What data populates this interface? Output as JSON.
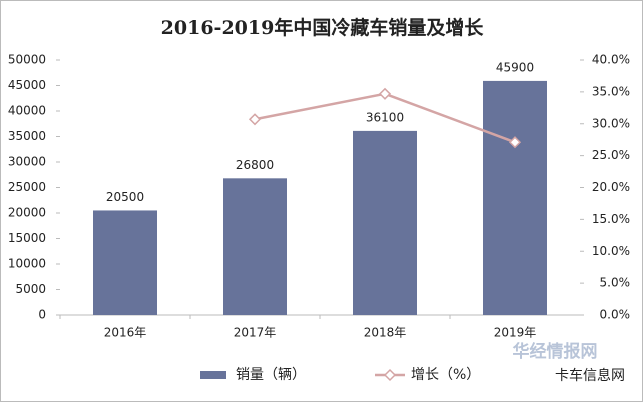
{
  "chart_data": {
    "type": "bar",
    "title": "2016-2019年中国冷藏车销量及增长",
    "categories": [
      "2016年",
      "2017年",
      "2018年",
      "2019年"
    ],
    "series": [
      {
        "name": "销量（辆）",
        "type": "bar",
        "color": "#67739a",
        "values": [
          20500,
          26800,
          36100,
          45900
        ]
      },
      {
        "name": "增长（%）",
        "type": "line",
        "axis": "y2",
        "color": "#d4a5a5",
        "values": [
          null,
          30.7,
          34.7,
          27.1
        ]
      }
    ],
    "ylim": [
      0,
      50000
    ],
    "yticks": [
      0,
      5000,
      10000,
      15000,
      20000,
      25000,
      30000,
      35000,
      40000,
      45000,
      50000
    ],
    "y2lim": [
      0,
      40
    ],
    "y2ticks": [
      {
        "value": 0,
        "label": "0.0%"
      },
      {
        "value": 5,
        "label": "5.0%"
      },
      {
        "value": 10,
        "label": "10.0%"
      },
      {
        "value": 15,
        "label": "15.0%"
      },
      {
        "value": 20,
        "label": "20.0%"
      },
      {
        "value": 25,
        "label": "25.0%"
      },
      {
        "value": 30,
        "label": "30.0%"
      },
      {
        "value": 35,
        "label": "35.0%"
      },
      {
        "value": 40,
        "label": "40.0%"
      }
    ],
    "grid": false,
    "legend": "bottom",
    "watermarks": [
      "华经情报网",
      "卡车信息网"
    ]
  }
}
